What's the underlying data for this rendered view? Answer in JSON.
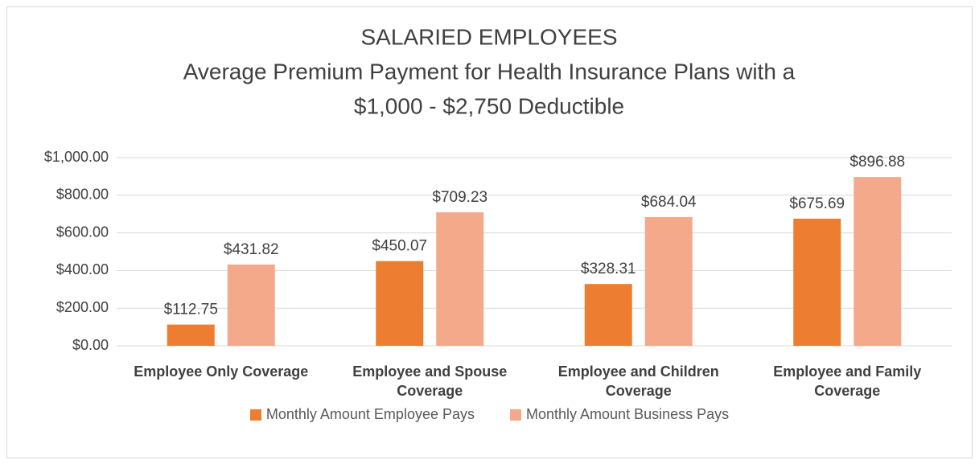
{
  "chart_data": {
    "type": "bar",
    "title": "SALARIED EMPLOYEES",
    "subtitle": [
      "Average Premium Payment for Health Insurance Plans with a",
      "$1,000 - $2,750 Deductible"
    ],
    "categories": [
      "Employee Only Coverage",
      "Employee and Spouse Coverage",
      "Employee and Children Coverage",
      "Employee and Family Coverage"
    ],
    "series": [
      {
        "name": "Monthly Amount Employee Pays",
        "color": "#ed7d31",
        "values": [
          112.75,
          450.07,
          328.31,
          675.69
        ],
        "value_labels": [
          "$112.75",
          "$450.07",
          "$328.31",
          "$675.69"
        ]
      },
      {
        "name": "Monthly Amount Business Pays",
        "color": "#f4a98a",
        "values": [
          431.82,
          709.23,
          684.04,
          896.88
        ],
        "value_labels": [
          "$431.82",
          "$709.23",
          "$684.04",
          "$896.88"
        ]
      }
    ],
    "ylim": [
      0,
      1000
    ],
    "yticks": [
      {
        "value": 0,
        "label": "$0.00"
      },
      {
        "value": 200,
        "label": "$200.00"
      },
      {
        "value": 400,
        "label": "$400.00"
      },
      {
        "value": 600,
        "label": "$600.00"
      },
      {
        "value": 800,
        "label": "$800.00"
      },
      {
        "value": 1000,
        "label": "$1,000.00"
      }
    ],
    "grid": true,
    "legend": "bottom"
  }
}
